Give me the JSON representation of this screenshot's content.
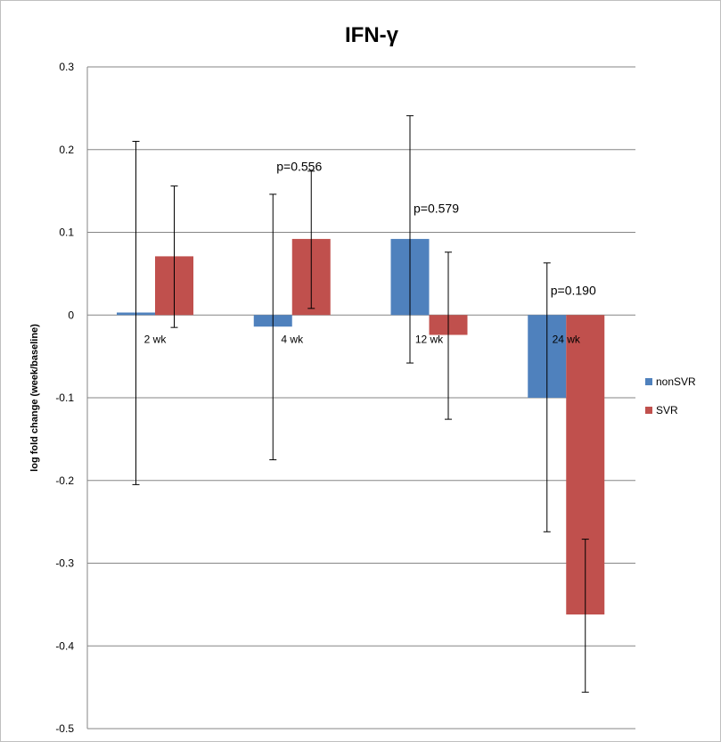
{
  "chart_data": {
    "type": "bar",
    "title": "IFN-γ",
    "xlabel": "",
    "ylabel": "log  fold change (week/baseline)",
    "ylim": [
      -0.5,
      0.3
    ],
    "yticks": [
      0.3,
      0.2,
      0.1,
      0,
      -0.1,
      -0.2,
      -0.3,
      -0.4,
      -0.5
    ],
    "categories": [
      "2 wk",
      "4 wk",
      "12 wk",
      "24 wk"
    ],
    "grid": true,
    "legend_position": "right",
    "series": [
      {
        "name": "nonSVR",
        "color": "#4f81bd",
        "values": [
          0.003,
          -0.014,
          0.092,
          -0.1
        ],
        "error_low": [
          -0.205,
          -0.175,
          -0.058,
          -0.262
        ],
        "error_high": [
          0.21,
          0.146,
          0.241,
          0.063
        ]
      },
      {
        "name": "SVR",
        "color": "#c0504d",
        "values": [
          0.071,
          0.092,
          -0.024,
          -0.362
        ],
        "error_low": [
          -0.015,
          0.008,
          -0.126,
          -0.456
        ],
        "error_high": [
          0.156,
          0.174,
          0.076,
          -0.271
        ]
      }
    ],
    "annotations": [
      {
        "text": "p=0.556",
        "category": "4 wk",
        "y": 0.18
      },
      {
        "text": "p=0.579",
        "category": "12 wk",
        "y": 0.129
      },
      {
        "text": "p=0.190",
        "category": "24 wk",
        "y": 0.03
      }
    ]
  }
}
